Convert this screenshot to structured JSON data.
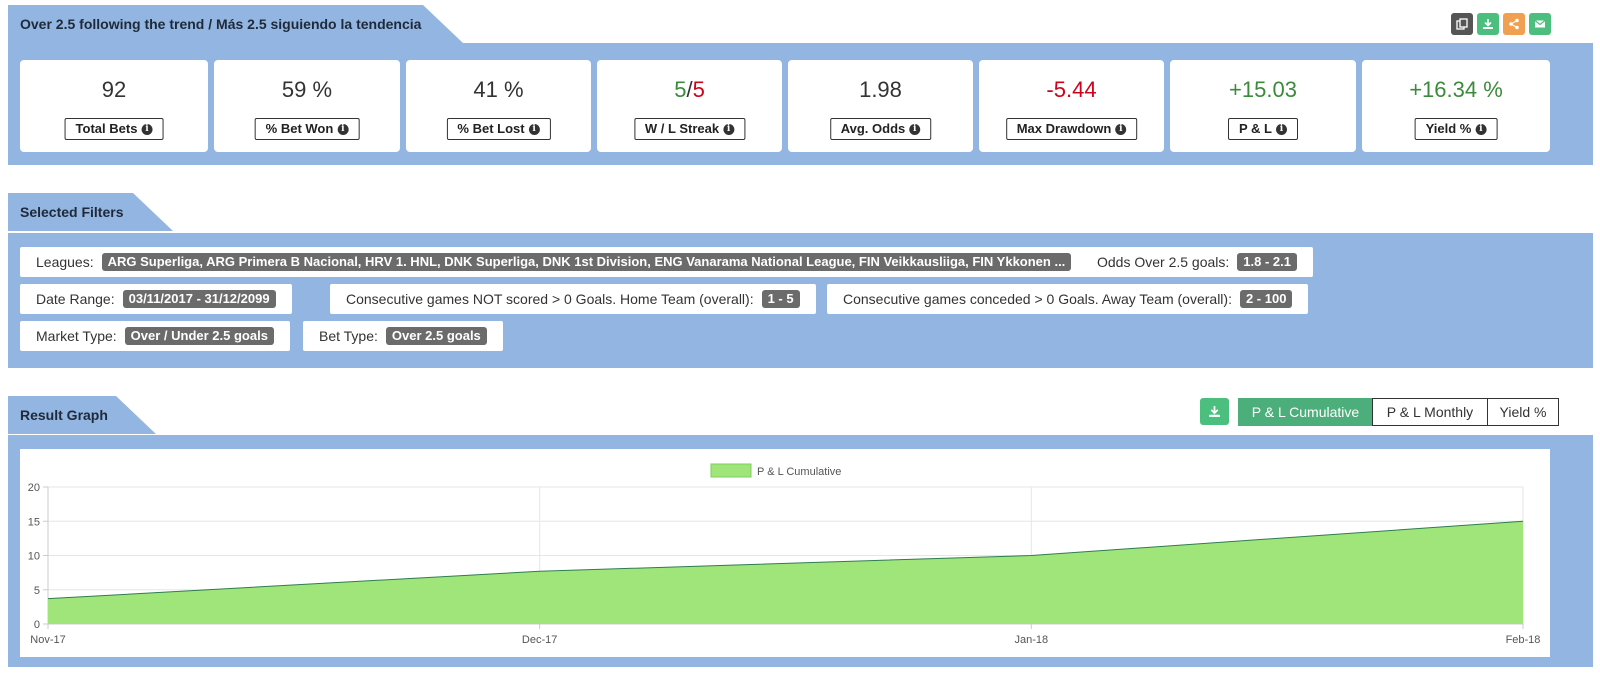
{
  "strategy": {
    "title": "Over 2.5 following the trend / Más 2.5 siguiendo la tendencia",
    "actions": [
      {
        "icon": "copy-icon",
        "color": "#555555"
      },
      {
        "icon": "download-icon",
        "color": "#4cbf7e"
      },
      {
        "icon": "share-icon",
        "color": "#f0a050"
      },
      {
        "icon": "envelope-icon",
        "color": "#4cbf7e"
      }
    ]
  },
  "stats": [
    {
      "value": "92",
      "label": "Total Bets"
    },
    {
      "value": "59 %",
      "label": "% Bet Won"
    },
    {
      "value": "41 %",
      "label": "% Bet Lost"
    },
    {
      "value_win": "5",
      "value_sep": "/",
      "value_loss": "5",
      "label": "W / L Streak"
    },
    {
      "value": "1.98",
      "label": "Avg. Odds"
    },
    {
      "value": "-5.44",
      "label": "Max Drawdown"
    },
    {
      "value": "+15.03",
      "label": "P & L"
    },
    {
      "value": "+16.34 %",
      "label": "Yield %"
    }
  ],
  "filters": {
    "title": "Selected Filters",
    "items": [
      {
        "label": "Leagues:",
        "value": "ARG Superliga, ARG Primera B Nacional, HRV 1. HNL, DNK Superliga, DNK 1st Division, ENG Vanarama National League, FIN Veikkausliiga, FIN Ykkonen ..."
      },
      {
        "label": "Odds Over 2.5 goals:",
        "value": "1.8 - 2.1"
      },
      {
        "label": "Date Range:",
        "value": "03/11/2017 - 31/12/2099"
      },
      {
        "label": "Consecutive games NOT scored > 0 Goals. Home Team (overall):",
        "value": "1 - 5"
      },
      {
        "label": "Consecutive games conceded > 0 Goals. Away Team (overall):",
        "value": "2 - 100"
      },
      {
        "label": "Market Type:",
        "value": "Over / Under 2.5 goals"
      },
      {
        "label": "Bet Type:",
        "value": "Over 2.5 goals"
      }
    ]
  },
  "graph": {
    "title": "Result Graph",
    "tabs": [
      "P & L Cumulative",
      "P & L Monthly",
      "Yield %"
    ],
    "active_tab": 0
  },
  "chart_data": {
    "type": "area",
    "legend": "P & L Cumulative",
    "legend_position": "top-center",
    "fill_color": "#a0e57a",
    "line_color": "#2e7d4f",
    "x": [
      "Nov-17",
      "Dec-17",
      "Jan-18",
      "Feb-18"
    ],
    "series": [
      {
        "name": "P & L Cumulative",
        "values": [
          3.7,
          7.7,
          10.0,
          15.0
        ]
      }
    ],
    "ylim": [
      0,
      20
    ],
    "yticks": [
      0,
      5,
      10,
      15,
      20
    ],
    "grid": true
  }
}
